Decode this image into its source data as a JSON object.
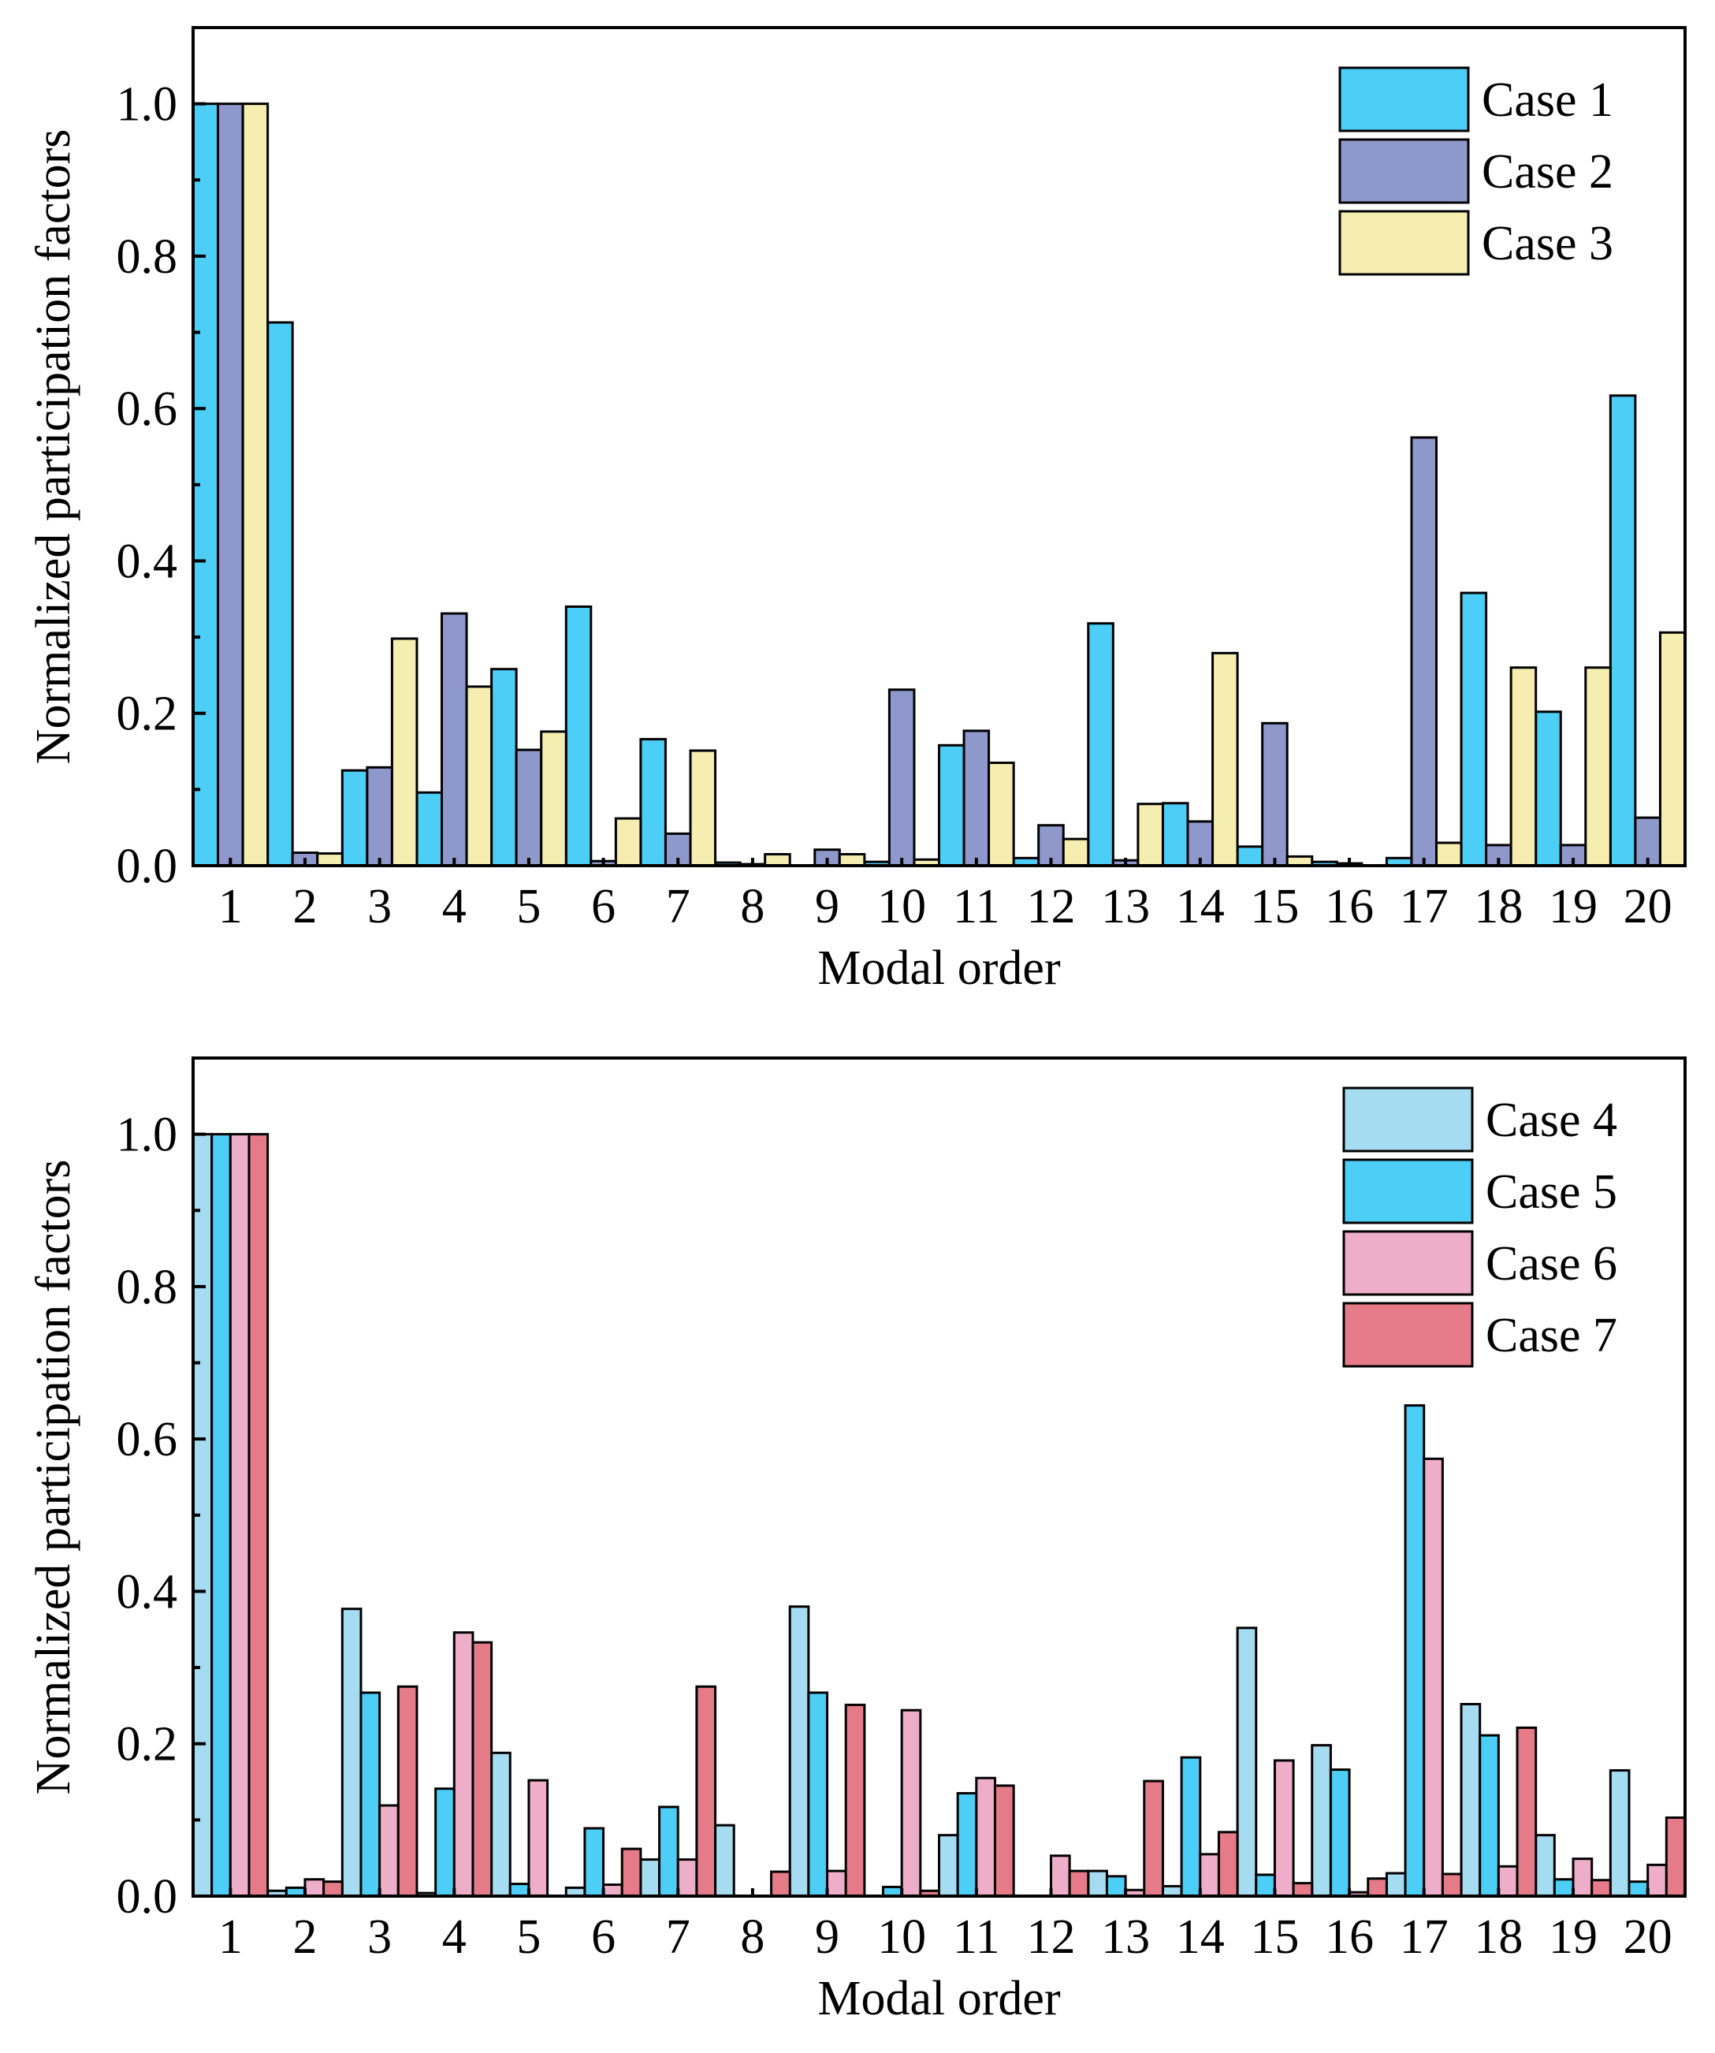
{
  "chart_data": [
    {
      "type": "bar",
      "xlabel": "Modal order",
      "ylabel": "Normalized participation factors",
      "ylim": [
        0,
        1.1
      ],
      "yticks": [
        "0.0",
        "0.2",
        "0.4",
        "0.6",
        "0.8",
        "1.0"
      ],
      "categories": [
        "1",
        "2",
        "3",
        "4",
        "5",
        "6",
        "7",
        "8",
        "9",
        "10",
        "11",
        "12",
        "13",
        "14",
        "15",
        "16",
        "17",
        "18",
        "19",
        "20"
      ],
      "legend_position": "top-right",
      "series": [
        {
          "name": "Case 1",
          "color": "#4ccef7",
          "values": [
            1.0,
            0.713,
            0.125,
            0.096,
            0.258,
            0.34,
            0.166,
            0.004,
            0.0,
            0.005,
            0.158,
            0.01,
            0.318,
            0.082,
            0.025,
            0.005,
            0.01,
            0.358,
            0.202,
            0.617
          ]
        },
        {
          "name": "Case 2",
          "color": "#8f98cb",
          "values": [
            1.0,
            0.017,
            0.129,
            0.331,
            0.152,
            0.006,
            0.042,
            0.002,
            0.021,
            0.231,
            0.177,
            0.053,
            0.007,
            0.058,
            0.187,
            0.003,
            0.562,
            0.027,
            0.027,
            0.063
          ]
        },
        {
          "name": "Case 3",
          "color": "#f6edb0",
          "values": [
            1.0,
            0.016,
            0.298,
            0.235,
            0.176,
            0.062,
            0.151,
            0.015,
            0.015,
            0.008,
            0.135,
            0.035,
            0.081,
            0.279,
            0.012,
            0.0,
            0.03,
            0.26,
            0.26,
            0.306
          ]
        }
      ]
    },
    {
      "type": "bar",
      "xlabel": "Modal order",
      "ylabel": "Normalized participation factors",
      "ylim": [
        0,
        1.1
      ],
      "yticks": [
        "0.0",
        "0.2",
        "0.4",
        "0.6",
        "0.8",
        "1.0"
      ],
      "categories": [
        "1",
        "2",
        "3",
        "4",
        "5",
        "6",
        "7",
        "8",
        "9",
        "10",
        "11",
        "12",
        "13",
        "14",
        "15",
        "16",
        "17",
        "18",
        "19",
        "20"
      ],
      "legend_position": "top-right",
      "series": [
        {
          "name": "Case 4",
          "color": "#a6dcf1",
          "values": [
            1.0,
            0.007,
            0.377,
            0.004,
            0.188,
            0.011,
            0.048,
            0.093,
            0.38,
            0.0,
            0.08,
            0.0,
            0.033,
            0.013,
            0.352,
            0.198,
            0.03,
            0.252,
            0.08,
            0.165
          ]
        },
        {
          "name": "Case 5",
          "color": "#4ccef7",
          "values": [
            1.0,
            0.011,
            0.267,
            0.141,
            0.016,
            0.089,
            0.117,
            0.0,
            0.267,
            0.012,
            0.135,
            0.0,
            0.026,
            0.182,
            0.028,
            0.166,
            0.644,
            0.211,
            0.022,
            0.019
          ]
        },
        {
          "name": "Case 6",
          "color": "#eeadc8",
          "values": [
            1.0,
            0.022,
            0.119,
            0.346,
            0.152,
            0.015,
            0.048,
            0.0,
            0.033,
            0.244,
            0.155,
            0.053,
            0.008,
            0.055,
            0.178,
            0.005,
            0.574,
            0.039,
            0.049,
            0.041
          ]
        },
        {
          "name": "Case 7",
          "color": "#e57b88",
          "values": [
            1.0,
            0.019,
            0.275,
            0.333,
            0.0,
            0.062,
            0.275,
            0.032,
            0.251,
            0.007,
            0.145,
            0.033,
            0.151,
            0.084,
            0.017,
            0.023,
            0.029,
            0.221,
            0.021,
            0.103
          ]
        }
      ]
    }
  ]
}
